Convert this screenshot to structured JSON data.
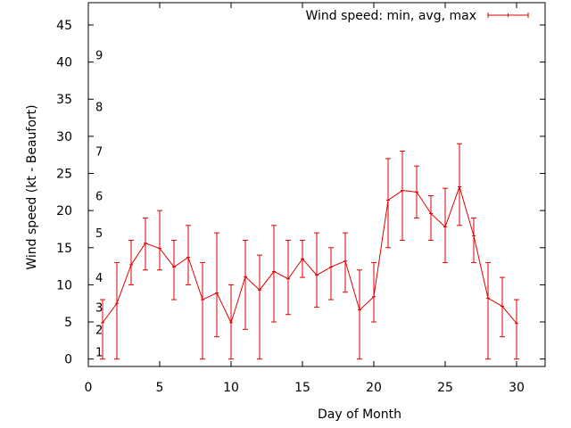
{
  "chart_data": {
    "type": "line",
    "title": "",
    "xlabel": "Day of Month",
    "ylabel": "Wind speed (kt - Beaufort)",
    "xlim": [
      0,
      32
    ],
    "ylim": [
      -1,
      48
    ],
    "xticks": [
      "0",
      "5",
      "10",
      "15",
      "20",
      "25",
      "30"
    ],
    "yticks": [
      "0",
      "5",
      "10",
      "15",
      "20",
      "25",
      "30",
      "35",
      "40",
      "45"
    ],
    "grid": false,
    "legend_position": "top-right",
    "color": "#e00000",
    "beaufort_labels": [
      {
        "label": "1",
        "y": 1
      },
      {
        "label": "2",
        "y": 4
      },
      {
        "label": "3",
        "y": 7
      },
      {
        "label": "4",
        "y": 11
      },
      {
        "label": "5",
        "y": 17
      },
      {
        "label": "6",
        "y": 22
      },
      {
        "label": "7",
        "y": 28
      },
      {
        "label": "8",
        "y": 34
      },
      {
        "label": "9",
        "y": 41
      }
    ],
    "series": [
      {
        "name": "Wind speed: min, avg, max",
        "x": [
          1,
          2,
          3,
          4,
          5,
          6,
          7,
          8,
          9,
          10,
          11,
          12,
          13,
          14,
          15,
          16,
          17,
          18,
          19,
          20,
          21,
          22,
          23,
          24,
          25,
          26,
          27,
          28,
          29,
          30
        ],
        "min": [
          0,
          0,
          10,
          12,
          12,
          8,
          10,
          0,
          3,
          0,
          4,
          0,
          5,
          6,
          11,
          7,
          8,
          9,
          0,
          5,
          15,
          16,
          19,
          16,
          13,
          18,
          13,
          0,
          3,
          0
        ],
        "avg": [
          4.9,
          7.5,
          12.7,
          15.6,
          14.9,
          12.4,
          13.7,
          8.0,
          8.9,
          4.9,
          11.1,
          9.3,
          11.8,
          10.8,
          13.5,
          11.3,
          12.4,
          13.2,
          6.6,
          8.4,
          21.4,
          22.7,
          22.5,
          19.6,
          17.8,
          23.2,
          16.6,
          8.2,
          7.1,
          4.8
        ],
        "max": [
          8,
          13,
          16,
          19,
          20,
          16,
          18,
          13,
          17,
          10,
          16,
          14,
          18,
          16,
          16,
          17,
          15,
          17,
          12,
          13,
          27,
          28,
          26,
          22,
          23,
          29,
          19,
          13,
          11,
          8
        ]
      }
    ]
  }
}
